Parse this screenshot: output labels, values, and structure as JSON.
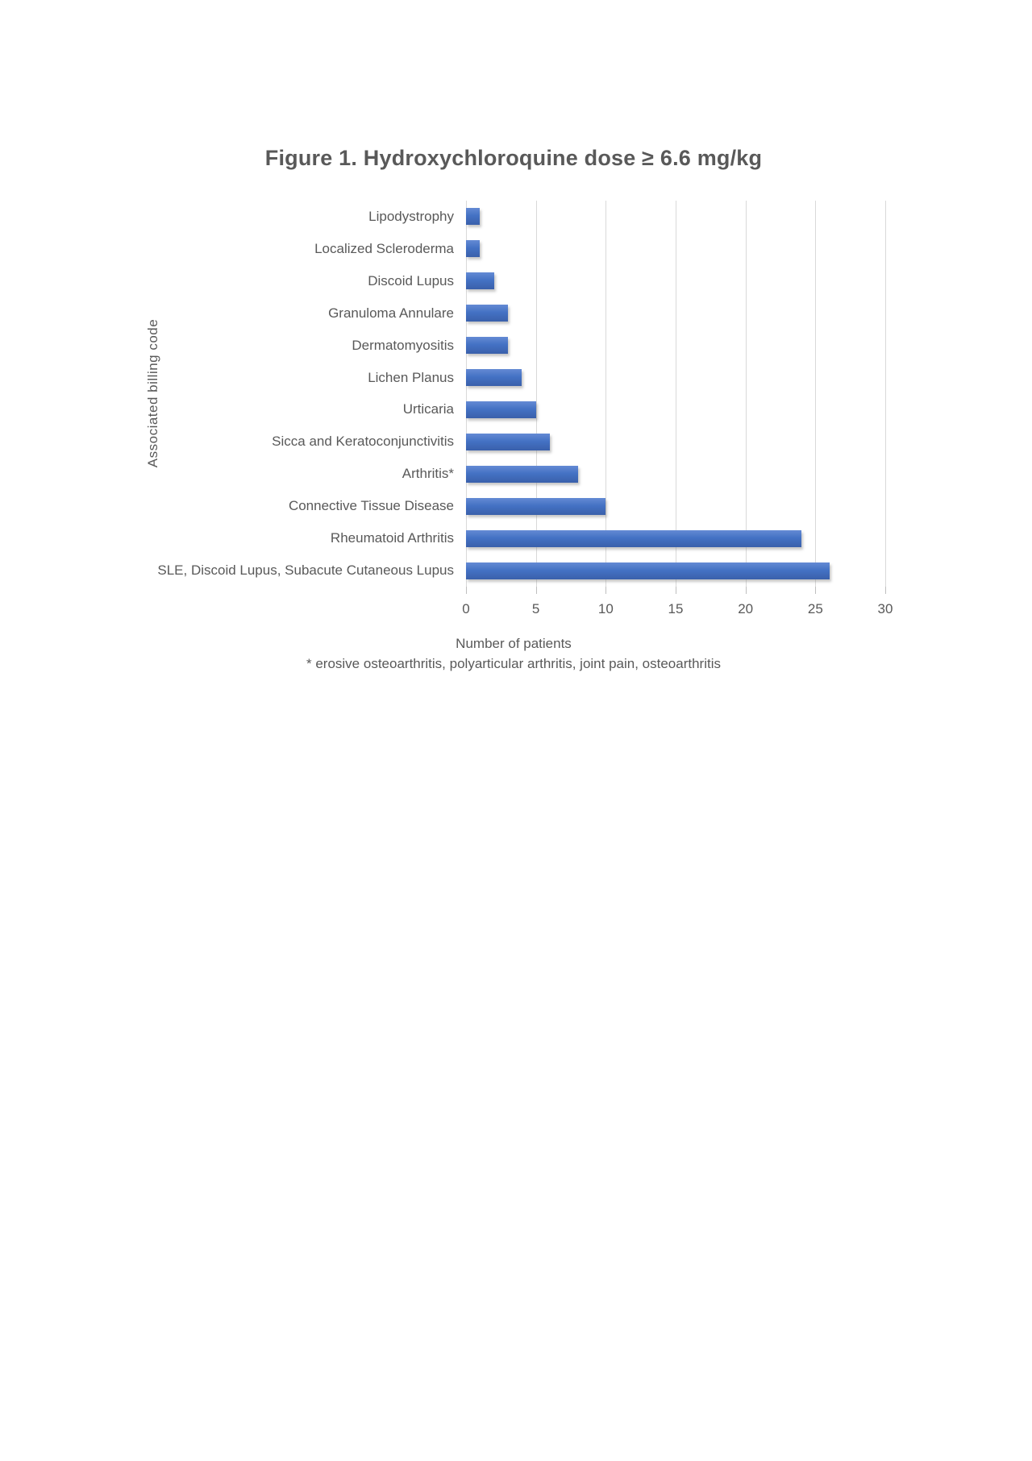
{
  "chart_data": {
    "type": "bar",
    "orientation": "horizontal",
    "title": "Figure 1. Hydroxychloroquine dose ≥ 6.6 mg/kg",
    "xlabel": "Number of patients",
    "ylabel": "Associated  billing code",
    "footnote": "* erosive osteoarthritis, polyarticular arthritis, joint pain, osteoarthritis",
    "categories": [
      "Lipodystrophy",
      "Localized Scleroderma",
      "Discoid Lupus",
      "Granuloma Annulare",
      "Dermatomyositis",
      "Lichen Planus",
      "Urticaria",
      "Sicca and Keratoconjunctivitis",
      "Arthritis*",
      "Connective Tissue Disease",
      "Rheumatoid Arthritis",
      "SLE, Discoid Lupus, Subacute Cutaneous Lupus"
    ],
    "values": [
      1,
      1,
      2,
      3,
      3,
      4,
      5,
      6,
      8,
      10,
      24,
      26
    ],
    "xlim": [
      0,
      30
    ],
    "x_ticks": [
      0,
      5,
      10,
      15,
      20,
      25,
      30
    ],
    "grid": "vertical-gridlines-only",
    "legend": "none",
    "bar_color": "#4472c4",
    "text_color": "#595959",
    "gridline_color": "#d9d9d9"
  }
}
